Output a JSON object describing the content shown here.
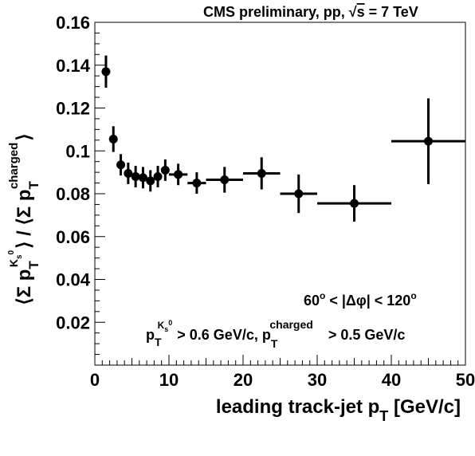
{
  "chart_data": {
    "type": "scatter",
    "title": "CMS preliminary, pp, √s = 7 TeV",
    "title_parts": {
      "prefix": "CMS preliminary, pp, ",
      "sqrt": "√",
      "s": "s",
      "suffix": " = 7 TeV"
    },
    "xlabel": "leading track-jet p",
    "xlabel_sub": "T",
    "xlabel_unit": " [GeV/c]",
    "ylabel_parts": {
      "open1": "⟨Σ p",
      "sub1": "T",
      "sup1": "K",
      "sup1_sub": "s",
      "sup1_sup": "0",
      "mid": "⟩ / ⟨Σ p",
      "sub2": "T",
      "sup2": "charged",
      "close": "⟩"
    },
    "xlim": [
      0,
      50
    ],
    "ylim": [
      0,
      0.16
    ],
    "x_ticks": [
      0,
      10,
      20,
      30,
      40,
      50
    ],
    "x_tick_labels": [
      "0",
      "10",
      "20",
      "30",
      "40",
      "50"
    ],
    "y_ticks": [
      0.02,
      0.04,
      0.06,
      0.08,
      0.1,
      0.12,
      0.14,
      0.16
    ],
    "y_tick_labels": [
      "0.02",
      "0.04",
      "0.06",
      "0.08",
      "0.1",
      "0.12",
      "0.14",
      "0.16"
    ],
    "grid": false,
    "series": [
      {
        "marker": "filled-circle",
        "color": "#000000",
        "points": [
          {
            "x": 1.5,
            "y": 0.137,
            "xerr": 0.5,
            "yerr": 0.0075
          },
          {
            "x": 2.5,
            "y": 0.1055,
            "xerr": 0.5,
            "yerr": 0.006
          },
          {
            "x": 3.5,
            "y": 0.0935,
            "xerr": 0.5,
            "yerr": 0.005
          },
          {
            "x": 4.5,
            "y": 0.0895,
            "xerr": 0.5,
            "yerr": 0.005
          },
          {
            "x": 5.5,
            "y": 0.088,
            "xerr": 0.5,
            "yerr": 0.005
          },
          {
            "x": 6.5,
            "y": 0.0875,
            "xerr": 0.5,
            "yerr": 0.005
          },
          {
            "x": 7.5,
            "y": 0.086,
            "xerr": 0.5,
            "yerr": 0.005
          },
          {
            "x": 8.5,
            "y": 0.088,
            "xerr": 0.5,
            "yerr": 0.005
          },
          {
            "x": 9.5,
            "y": 0.091,
            "xerr": 0.5,
            "yerr": 0.005
          },
          {
            "x": 11.25,
            "y": 0.089,
            "xerr": 1.25,
            "yerr": 0.005
          },
          {
            "x": 13.75,
            "y": 0.085,
            "xerr": 1.25,
            "yerr": 0.005
          },
          {
            "x": 17.5,
            "y": 0.0865,
            "xerr": 2.5,
            "yerr": 0.006
          },
          {
            "x": 22.5,
            "y": 0.0895,
            "xerr": 2.5,
            "yerr": 0.0075
          },
          {
            "x": 27.5,
            "y": 0.08,
            "xerr": 2.5,
            "yerr": 0.009
          },
          {
            "x": 35,
            "y": 0.0755,
            "xerr": 5,
            "yerr": 0.0085
          },
          {
            "x": 45,
            "y": 0.1045,
            "xerr": 5,
            "yerr": 0.02
          }
        ]
      }
    ],
    "annotations": {
      "dphi": {
        "a": "60",
        "deg": "o",
        "b": " < |Δφ| < 120",
        "deg2": "o"
      },
      "cuts": {
        "p1": "p",
        "p1_sub": "T",
        "p1_sup": "K",
        "p1_sup_sub": "s",
        "p1_sup_sup": "0",
        "text1": " > 0.6 GeV/c, p",
        "p2_sub": "T",
        "p2_sup": "charged",
        "text2": " > 0.5 GeV/c"
      }
    }
  }
}
